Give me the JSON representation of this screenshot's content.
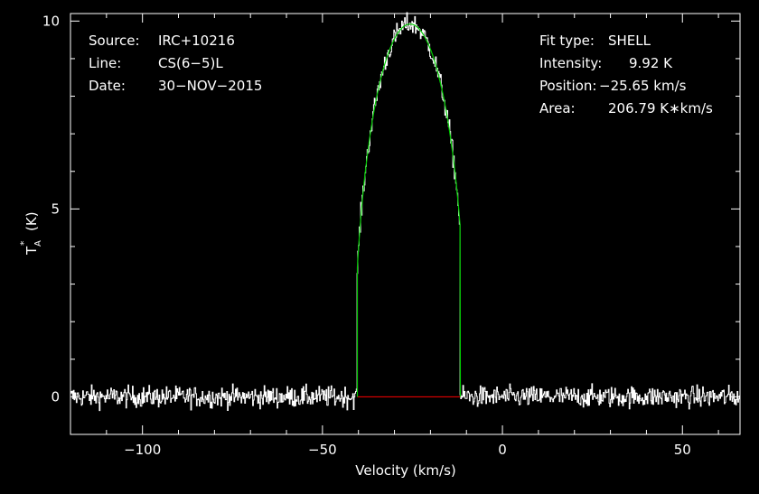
{
  "chart_data": {
    "type": "line",
    "xlabel": "Velocity (km/s)",
    "ylabel_main": "T",
    "ylabel_sub": "A",
    "ylabel_sup": "*",
    "ylabel_unit": "(K)",
    "xlim": [
      -120,
      66
    ],
    "ylim": [
      -1,
      10.2
    ],
    "xticks": [
      -100,
      -50,
      0,
      50
    ],
    "xtick_labels": [
      "−100",
      "−50",
      "0",
      "50"
    ],
    "yticks": [
      0,
      5,
      10
    ],
    "ytick_labels": [
      "0",
      "5",
      "10"
    ],
    "grid": false,
    "info_left": [
      {
        "key": "Source:",
        "value": "IRC+10216"
      },
      {
        "key": "Line:",
        "value": "CS(6−5)L"
      },
      {
        "key": "Date:",
        "value": "30−NOV−2015"
      }
    ],
    "info_right": [
      {
        "key": "Fit type:",
        "value": "SHELL"
      },
      {
        "key": "Intensity:",
        "value": "9.92 K"
      },
      {
        "key": "Position:",
        "value": "−25.65 km/s"
      },
      {
        "key": "Area:",
        "value": "206.79 K∗km/s"
      }
    ],
    "fit": {
      "center": -25.65,
      "peak": 9.92,
      "left_edge": -40.3,
      "right_edge": -11.7,
      "baseline": 0
    },
    "noise_rms": 0.2,
    "colors": {
      "background": "#000000",
      "frame": "#ffffff",
      "spectrum": "#ffffff",
      "fit": "#00cc00",
      "baseline": "#ff0000"
    }
  }
}
